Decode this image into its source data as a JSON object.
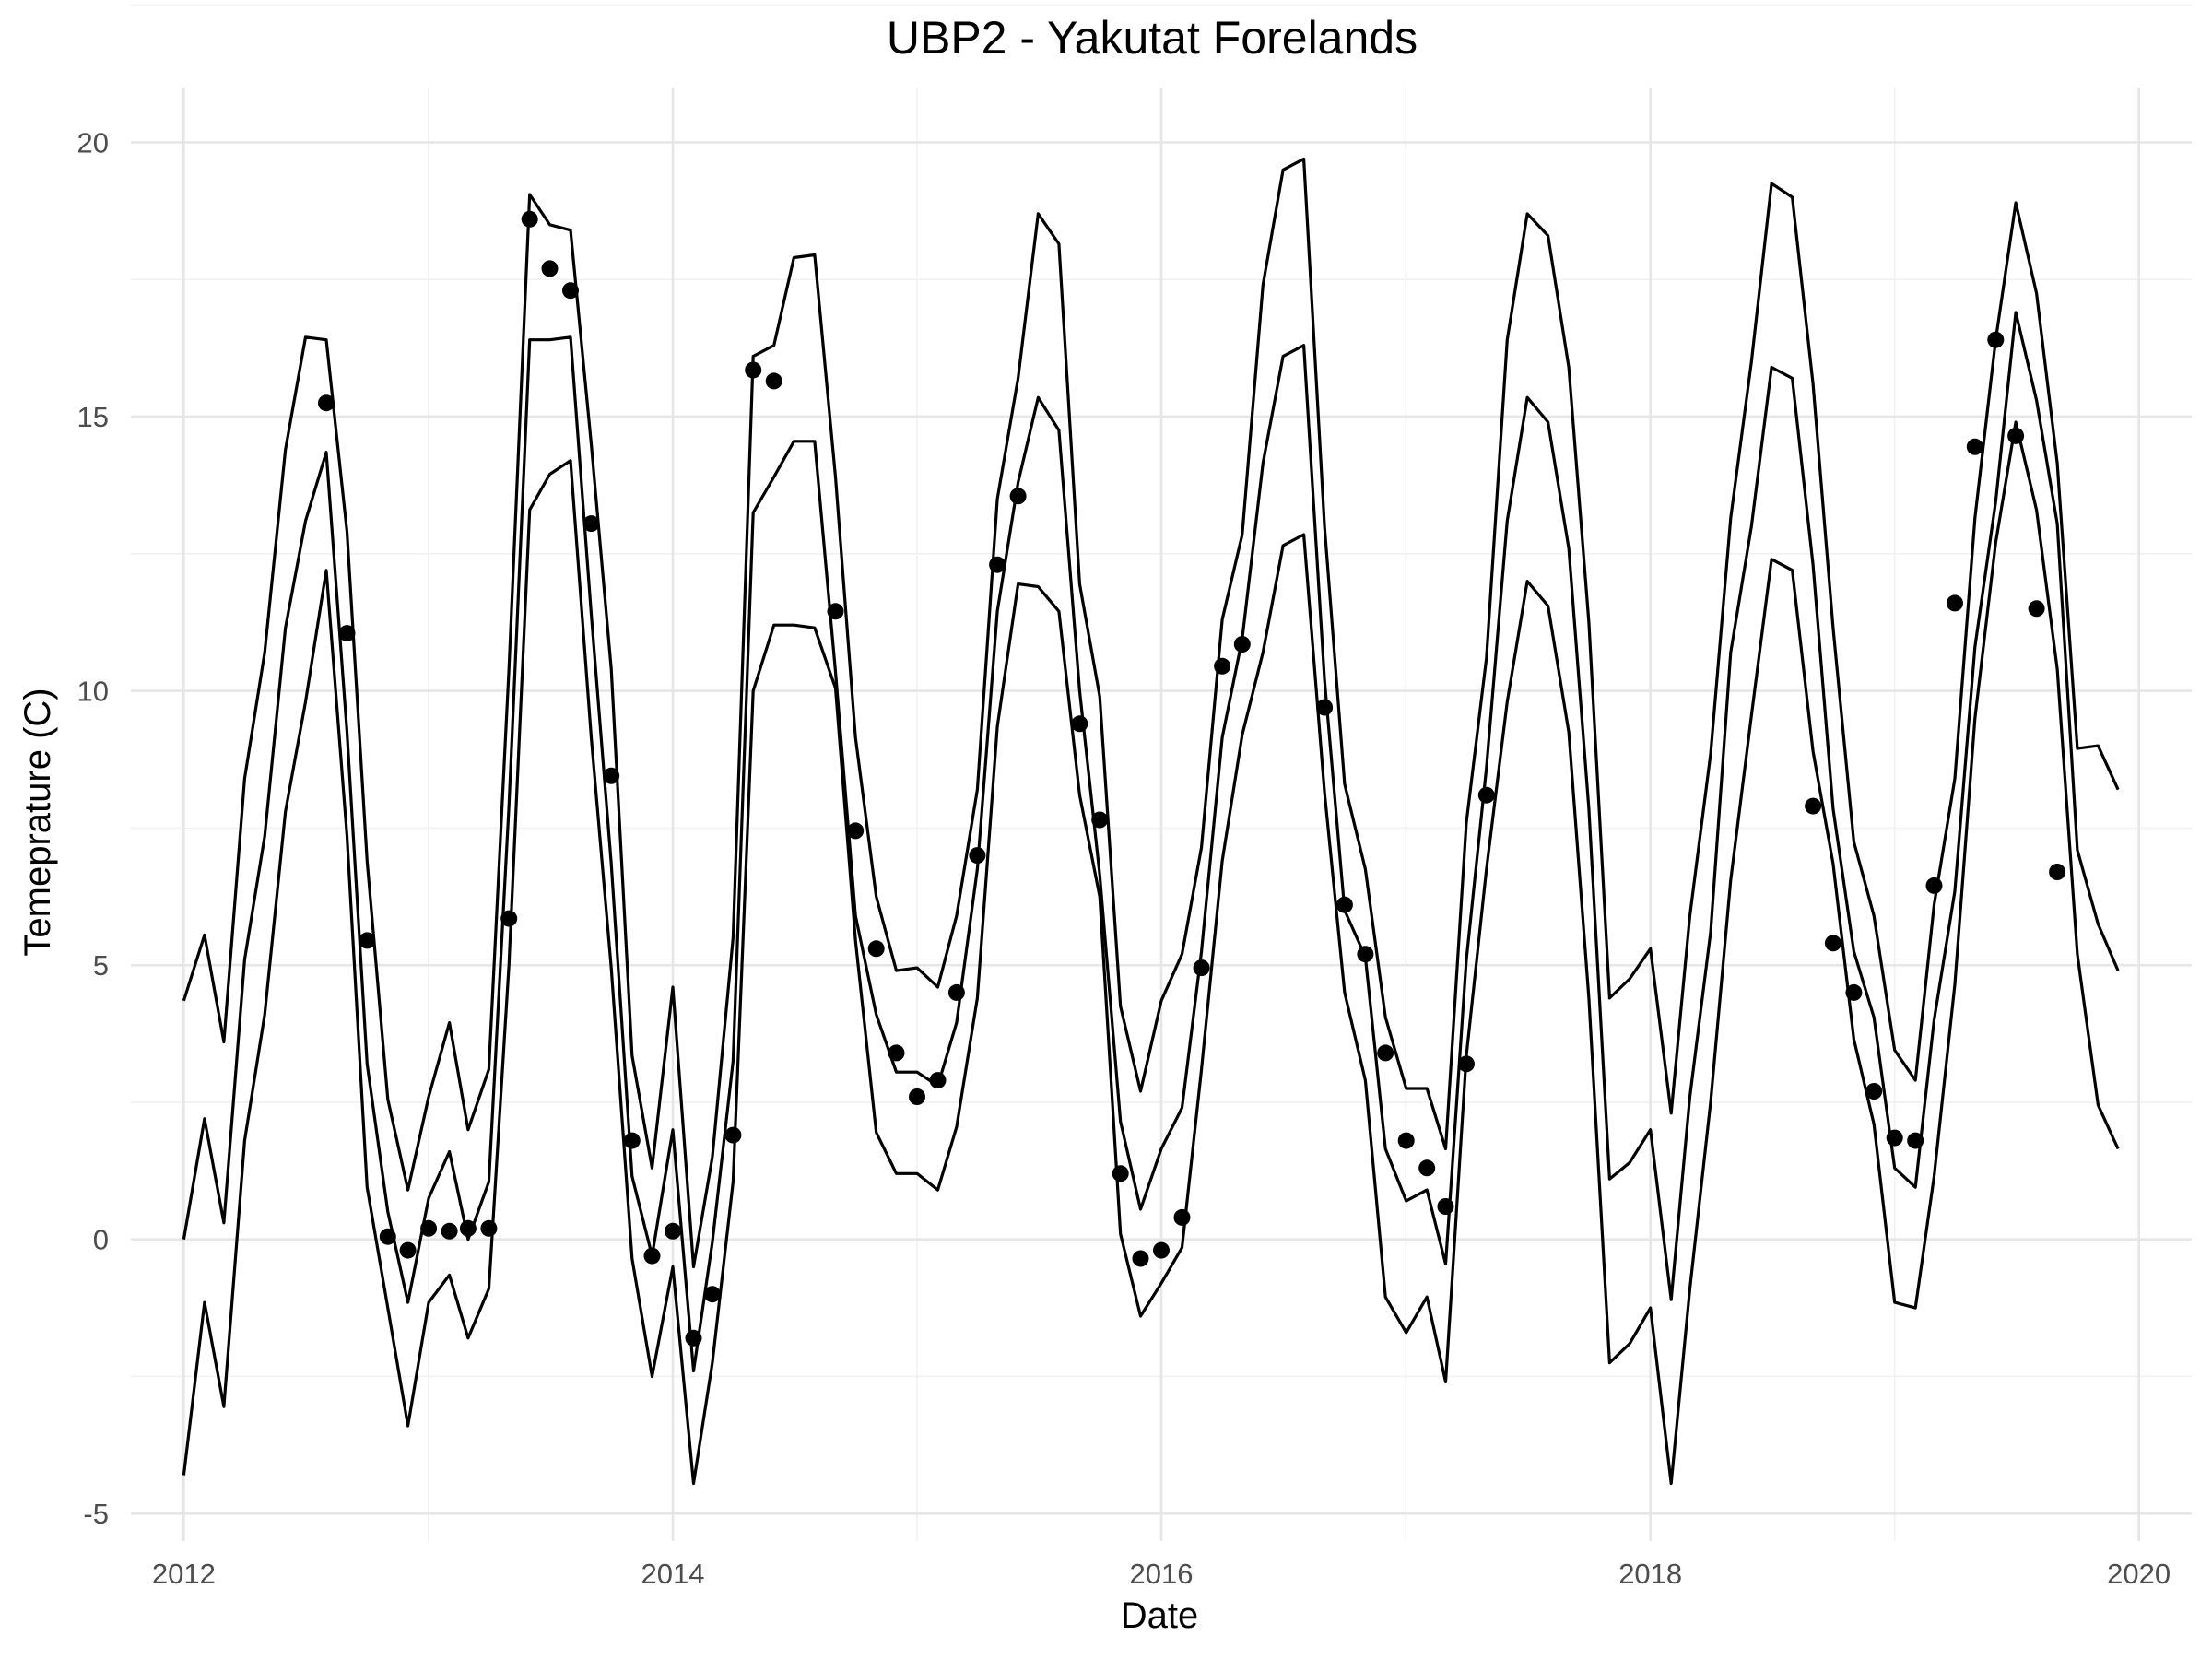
{
  "chart_data": {
    "type": "line",
    "title": "UBP2 - Yakutat Forelands",
    "xlabel": "Date",
    "ylabel": "Temeprature (C)",
    "xlim": [
      "2011-10-14",
      "2020-03-20"
    ],
    "ylim": [
      -5.5,
      21.0
    ],
    "x_ticks": [
      "2012-01-01",
      "2014-01-01",
      "2016-01-01",
      "2018-01-01",
      "2020-01-01"
    ],
    "x_tick_labels": [
      "2012",
      "2014",
      "2016",
      "2018",
      "2020"
    ],
    "y_ticks": [
      -5,
      0,
      5,
      10,
      15,
      20
    ],
    "y_tick_labels": [
      "-5",
      "0",
      "5",
      "10",
      "15",
      "20"
    ],
    "grid": true,
    "x": [
      "2012-01",
      "2012-02",
      "2012-03",
      "2012-04",
      "2012-05",
      "2012-06",
      "2012-07",
      "2012-08",
      "2012-09",
      "2012-10",
      "2012-11",
      "2012-12",
      "2013-01",
      "2013-02",
      "2013-03",
      "2013-04",
      "2013-05",
      "2013-06",
      "2013-07",
      "2013-08",
      "2013-09",
      "2013-10",
      "2013-11",
      "2013-12",
      "2014-01",
      "2014-02",
      "2014-03",
      "2014-04",
      "2014-05",
      "2014-06",
      "2014-07",
      "2014-08",
      "2014-09",
      "2014-10",
      "2014-11",
      "2014-12",
      "2015-01",
      "2015-02",
      "2015-03",
      "2015-04",
      "2015-05",
      "2015-06",
      "2015-07",
      "2015-08",
      "2015-09",
      "2015-10",
      "2015-11",
      "2015-12",
      "2016-01",
      "2016-02",
      "2016-03",
      "2016-04",
      "2016-05",
      "2016-06",
      "2016-07",
      "2016-08",
      "2016-09",
      "2016-10",
      "2016-11",
      "2016-12",
      "2017-01",
      "2017-02",
      "2017-03",
      "2017-04",
      "2017-05",
      "2017-06",
      "2017-07",
      "2017-08",
      "2017-09",
      "2017-10",
      "2017-11",
      "2017-12",
      "2018-01",
      "2018-02",
      "2018-03",
      "2018-04",
      "2018-05",
      "2018-06",
      "2018-07",
      "2018-08",
      "2018-09",
      "2018-10",
      "2018-11",
      "2018-12",
      "2019-01",
      "2019-02",
      "2019-03",
      "2019-04",
      "2019-05",
      "2019-06",
      "2019-07",
      "2019-08",
      "2019-09",
      "2019-10",
      "2019-11",
      "2019-12"
    ],
    "series": [
      {
        "values": [
          4.35,
          5.55,
          3.6,
          8.4,
          10.7,
          14.4,
          16.45,
          16.4,
          12.9,
          6.9,
          2.55,
          0.9,
          2.6,
          3.95,
          2.0,
          3.1,
          10.4,
          19.05,
          18.5,
          18.4,
          14.5,
          10.4,
          3.35,
          1.3,
          4.6,
          -0.5,
          1.5,
          5.5,
          16.1,
          16.3,
          17.9,
          17.95,
          13.9,
          9.15,
          6.25,
          4.9,
          4.95,
          4.6,
          5.9,
          8.2,
          13.5,
          15.7,
          18.7,
          18.15,
          11.95,
          9.9,
          4.25,
          2.7,
          4.35,
          5.2,
          7.15,
          11.3,
          12.85,
          17.4,
          19.5,
          19.7,
          13.0,
          8.3,
          6.75,
          4.05,
          2.75,
          2.75,
          1.65,
          7.6,
          10.6,
          16.4,
          18.7,
          18.3,
          15.9,
          11.25,
          4.4,
          4.75,
          5.3,
          2.3,
          5.9,
          8.85,
          13.15,
          16.0,
          19.25,
          19.0,
          15.6,
          11.15,
          7.25,
          5.9,
          3.45,
          2.9,
          6.1,
          8.4,
          13.15,
          16.4,
          18.9,
          17.25,
          14.15,
          8.95,
          9.0,
          8.2
        ]
      },
      {
        "values": [
          0.0,
          2.2,
          0.3,
          5.1,
          7.35,
          11.15,
          13.1,
          14.35,
          9.25,
          3.2,
          0.5,
          -1.15,
          0.75,
          1.6,
          0.0,
          1.05,
          7.9,
          16.4,
          16.4,
          16.45,
          11.4,
          6.85,
          1.15,
          -0.3,
          2.0,
          -2.4,
          -0.05,
          3.25,
          13.25,
          13.9,
          14.55,
          14.55,
          10.35,
          5.9,
          4.1,
          3.05,
          3.05,
          2.8,
          3.95,
          6.75,
          11.45,
          13.8,
          15.35,
          14.75,
          10.0,
          6.65,
          2.15,
          0.55,
          1.65,
          2.4,
          5.25,
          9.15,
          10.95,
          14.15,
          16.1,
          16.3,
          10.2,
          6.0,
          5.15,
          1.65,
          0.7,
          0.9,
          -0.45,
          5.1,
          8.6,
          13.1,
          15.35,
          14.9,
          12.6,
          7.85,
          1.1,
          1.4,
          2.0,
          -1.1,
          2.6,
          5.6,
          10.7,
          13.0,
          15.9,
          15.7,
          12.3,
          7.85,
          5.25,
          4.05,
          1.3,
          0.95,
          4.0,
          6.35,
          10.8,
          13.45,
          16.9,
          15.3,
          13.05,
          7.1,
          5.75,
          4.9
        ]
      },
      {
        "values": [
          -4.3,
          -1.15,
          -3.05,
          1.8,
          4.1,
          7.8,
          9.8,
          12.2,
          7.35,
          0.95,
          -1.25,
          -3.4,
          -1.15,
          -0.65,
          -1.8,
          -0.9,
          5.0,
          13.3,
          13.95,
          14.2,
          9.15,
          4.95,
          -0.35,
          -2.5,
          -0.5,
          -4.45,
          -2.25,
          1.05,
          10.0,
          11.2,
          11.2,
          11.15,
          10.05,
          5.45,
          1.95,
          1.2,
          1.2,
          0.9,
          2.05,
          4.4,
          9.35,
          11.95,
          11.9,
          11.45,
          8.1,
          6.25,
          0.1,
          -1.4,
          -0.8,
          -0.15,
          3.1,
          6.9,
          9.2,
          10.7,
          12.65,
          12.85,
          8.15,
          4.5,
          2.9,
          -1.05,
          -1.7,
          -1.05,
          -2.6,
          3.35,
          6.75,
          9.8,
          12.0,
          11.55,
          9.25,
          4.4,
          -2.25,
          -1.9,
          -1.25,
          -4.45,
          -0.9,
          2.5,
          6.55,
          9.55,
          12.4,
          12.2,
          8.9,
          6.85,
          3.65,
          2.1,
          -1.15,
          -1.25,
          1.15,
          4.65,
          9.5,
          12.7,
          14.9,
          13.3,
          10.4,
          5.2,
          2.45,
          1.65
        ]
      }
    ],
    "observations": [
      {
        "x": "2012-08",
        "y": 15.25
      },
      {
        "x": "2012-09",
        "y": 11.05
      },
      {
        "x": "2012-10",
        "y": 5.45
      },
      {
        "x": "2012-11",
        "y": 0.05
      },
      {
        "x": "2012-12",
        "y": -0.2
      },
      {
        "x": "2013-01",
        "y": 0.2
      },
      {
        "x": "2013-02",
        "y": 0.15
      },
      {
        "x": "2013-03",
        "y": 0.2
      },
      {
        "x": "2013-04",
        "y": 0.2
      },
      {
        "x": "2013-05",
        "y": 5.85
      },
      {
        "x": "2013-06",
        "y": 18.6
      },
      {
        "x": "2013-07",
        "y": 17.7
      },
      {
        "x": "2013-08",
        "y": 17.3
      },
      {
        "x": "2013-09",
        "y": 13.05
      },
      {
        "x": "2013-10",
        "y": 8.45
      },
      {
        "x": "2013-11",
        "y": 1.8
      },
      {
        "x": "2013-12",
        "y": -0.3
      },
      {
        "x": "2014-01",
        "y": 0.15
      },
      {
        "x": "2014-02",
        "y": -1.8
      },
      {
        "x": "2014-03",
        "y": -1.0
      },
      {
        "x": "2014-04",
        "y": 1.9
      },
      {
        "x": "2014-05",
        "y": 15.85
      },
      {
        "x": "2014-06",
        "y": 15.65
      },
      {
        "x": "2014-09",
        "y": 11.45
      },
      {
        "x": "2014-10",
        "y": 7.45
      },
      {
        "x": "2014-11",
        "y": 5.3
      },
      {
        "x": "2014-12",
        "y": 3.4
      },
      {
        "x": "2015-01",
        "y": 2.6
      },
      {
        "x": "2015-02",
        "y": 2.9
      },
      {
        "x": "2015-03",
        "y": 4.5
      },
      {
        "x": "2015-04",
        "y": 7.0
      },
      {
        "x": "2015-05",
        "y": 12.3
      },
      {
        "x": "2015-06",
        "y": 13.55
      },
      {
        "x": "2015-09",
        "y": 9.4
      },
      {
        "x": "2015-10",
        "y": 7.65
      },
      {
        "x": "2015-11",
        "y": 1.2
      },
      {
        "x": "2015-12",
        "y": -0.35
      },
      {
        "x": "2016-01",
        "y": -0.2
      },
      {
        "x": "2016-02",
        "y": 0.4
      },
      {
        "x": "2016-03",
        "y": 4.95
      },
      {
        "x": "2016-04",
        "y": 10.45
      },
      {
        "x": "2016-05",
        "y": 10.85
      },
      {
        "x": "2016-09",
        "y": 9.7
      },
      {
        "x": "2016-10",
        "y": 6.1
      },
      {
        "x": "2016-11",
        "y": 5.2
      },
      {
        "x": "2016-12",
        "y": 3.4
      },
      {
        "x": "2017-01",
        "y": 1.8
      },
      {
        "x": "2017-02",
        "y": 1.3
      },
      {
        "x": "2017-03",
        "y": 0.6
      },
      {
        "x": "2017-04",
        "y": 3.2
      },
      {
        "x": "2017-05",
        "y": 8.1
      },
      {
        "x": "2018-09",
        "y": 7.9
      },
      {
        "x": "2018-10",
        "y": 5.4
      },
      {
        "x": "2018-11",
        "y": 4.5
      },
      {
        "x": "2018-12",
        "y": 2.7
      },
      {
        "x": "2019-01",
        "y": 1.85
      },
      {
        "x": "2019-02",
        "y": 1.8
      },
      {
        "x": "2019-03",
        "y": 6.45
      },
      {
        "x": "2019-04",
        "y": 11.6
      },
      {
        "x": "2019-05",
        "y": 14.45
      },
      {
        "x": "2019-06",
        "y": 16.4
      },
      {
        "x": "2019-07",
        "y": 14.65
      },
      {
        "x": "2019-08",
        "y": 11.5
      },
      {
        "x": "2019-09",
        "y": 6.7
      }
    ]
  }
}
